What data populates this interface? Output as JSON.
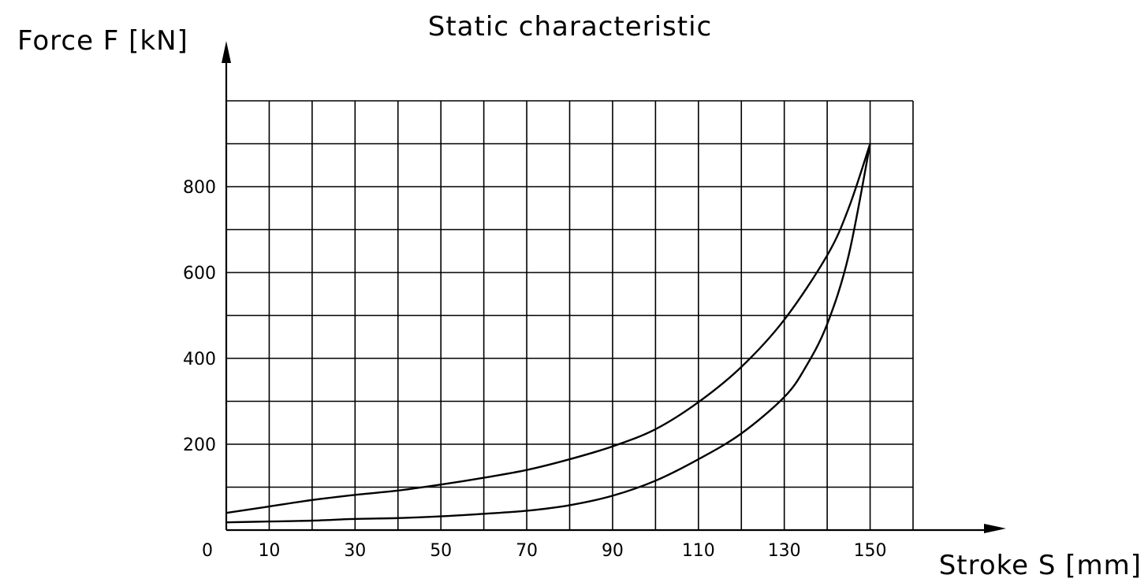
{
  "chart_data": {
    "type": "line",
    "title": "Static characteristic",
    "xlabel": "Stroke S [mm]",
    "ylabel": "Force F [kN]",
    "xlim": [
      0,
      160
    ],
    "ylim": [
      0,
      1000
    ],
    "x_ticks": [
      0,
      10,
      30,
      50,
      70,
      90,
      110,
      130,
      150
    ],
    "y_ticks": [
      200,
      400,
      600,
      800
    ],
    "x_grid_step": 10,
    "y_grid_step": 100,
    "grid": true,
    "legend": "none",
    "series": [
      {
        "x": [
          0,
          10,
          20,
          30,
          40,
          50,
          60,
          70,
          80,
          90,
          100,
          110,
          120,
          130,
          140,
          145,
          150
        ],
        "y": [
          40,
          55,
          70,
          82,
          92,
          106,
          122,
          140,
          165,
          195,
          235,
          298,
          380,
          490,
          640,
          750,
          900
        ]
      },
      {
        "x": [
          0,
          10,
          20,
          30,
          40,
          50,
          60,
          70,
          80,
          90,
          100,
          110,
          120,
          130,
          135,
          140,
          145,
          150
        ],
        "y": [
          18,
          20,
          22,
          26,
          28,
          32,
          38,
          45,
          58,
          80,
          115,
          165,
          225,
          310,
          380,
          480,
          640,
          900
        ]
      }
    ]
  }
}
